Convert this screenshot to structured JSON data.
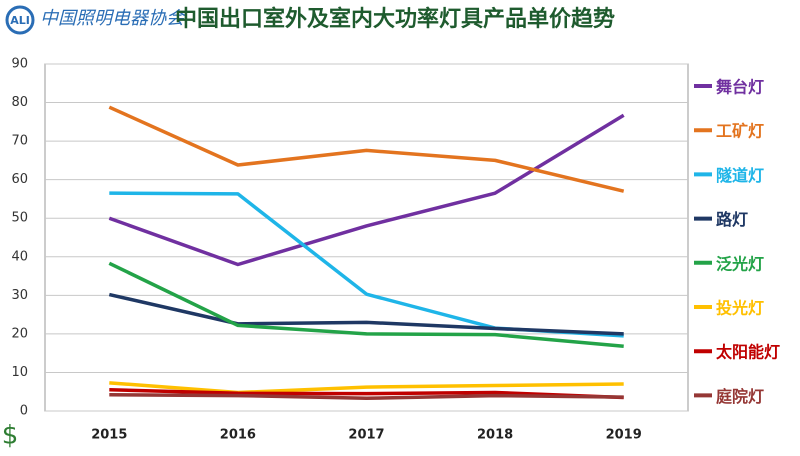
{
  "chart_data": {
    "type": "line",
    "logo_text": "中国照明电器协会",
    "title": "中国出口室外及室内大功率灯具产品单价趋势",
    "y_label": "$",
    "categories": [
      "2015",
      "2016",
      "2017",
      "2018",
      "2019"
    ],
    "ylim": [
      0,
      90
    ],
    "yticks": [
      0,
      10,
      20,
      30,
      40,
      50,
      60,
      70,
      80,
      90
    ],
    "grid": true,
    "legend": "right",
    "series": [
      {
        "name": "舞台灯",
        "color": "#7030a0",
        "values": [
          50,
          38,
          48,
          56.5,
          76.7
        ]
      },
      {
        "name": "工矿灯",
        "color": "#e3741f",
        "values": [
          78.8,
          63.8,
          67.6,
          65,
          57
        ]
      },
      {
        "name": "隧道灯",
        "color": "#1fb5e8",
        "values": [
          56.5,
          56.3,
          30.3,
          21.5,
          19.5
        ]
      },
      {
        "name": "路灯",
        "color": "#1f3864",
        "values": [
          30.2,
          22.6,
          23,
          21.4,
          20
        ]
      },
      {
        "name": "泛光灯",
        "color": "#23a348",
        "values": [
          38.3,
          22.2,
          20,
          19.8,
          16.8
        ]
      },
      {
        "name": "投光灯",
        "color": "#ffc000",
        "values": [
          7.3,
          4.8,
          6.2,
          6.6,
          7
        ]
      },
      {
        "name": "太阳能灯",
        "color": "#c00000",
        "values": [
          5.5,
          4.6,
          4.5,
          4.8,
          3.5
        ]
      },
      {
        "name": "庭院灯",
        "color": "#953735",
        "values": [
          4.2,
          4,
          3.3,
          4,
          3.6
        ]
      }
    ]
  }
}
